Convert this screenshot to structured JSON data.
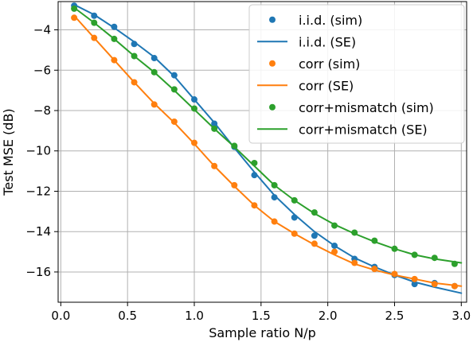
{
  "chart_data": {
    "type": "line",
    "xlabel": "Sample ratio N/p",
    "ylabel": "Test MSE (dB)",
    "xlim": [
      0.0,
      3.0
    ],
    "ylim": [
      -17.5,
      -2.6
    ],
    "grid": true,
    "legend_position": "top-right",
    "xticks": [
      {
        "value": 0.0,
        "label": "0.0"
      },
      {
        "value": 0.5,
        "label": "0.5"
      },
      {
        "value": 1.0,
        "label": "1.0"
      },
      {
        "value": 1.5,
        "label": "1.5"
      },
      {
        "value": 2.0,
        "label": "2.0"
      },
      {
        "value": 2.5,
        "label": "2.5"
      },
      {
        "value": 3.0,
        "label": "3.0"
      }
    ],
    "yticks": [
      {
        "value": -4,
        "label": "−4"
      },
      {
        "value": -6,
        "label": "−6"
      },
      {
        "value": -8,
        "label": "−8"
      },
      {
        "value": -10,
        "label": "−10"
      },
      {
        "value": -12,
        "label": "−12"
      },
      {
        "value": -14,
        "label": "−14"
      },
      {
        "value": -16,
        "label": "−16"
      }
    ],
    "series": [
      {
        "name": "i.i.d. (sim)",
        "kind": "points",
        "color": "#1f77b4",
        "x": [
          0.1,
          0.25,
          0.4,
          0.55,
          0.7,
          0.85,
          1.0,
          1.15,
          1.3,
          1.45,
          1.6,
          1.75,
          1.9,
          2.05,
          2.2,
          2.35,
          2.5,
          2.65,
          2.8,
          2.95
        ],
        "y": [
          -2.8,
          -3.3,
          -3.85,
          -4.7,
          -5.4,
          -6.25,
          -7.45,
          -8.65,
          -9.8,
          -11.2,
          -12.3,
          -13.3,
          -14.2,
          -14.7,
          -15.35,
          -15.75,
          -16.15,
          -16.6,
          -16.55,
          -16.7
        ]
      },
      {
        "name": "i.i.d. (SE)",
        "kind": "line",
        "color": "#1f77b4",
        "x": [
          0.1,
          0.25,
          0.4,
          0.55,
          0.7,
          0.85,
          1.0,
          1.15,
          1.3,
          1.45,
          1.6,
          1.75,
          1.9,
          2.05,
          2.2,
          2.35,
          2.5,
          2.65,
          2.8,
          3.0
        ],
        "y": [
          -2.75,
          -3.25,
          -3.9,
          -4.6,
          -5.35,
          -6.3,
          -7.45,
          -8.6,
          -9.85,
          -11.05,
          -12.2,
          -13.15,
          -14.0,
          -14.7,
          -15.3,
          -15.75,
          -16.15,
          -16.5,
          -16.75,
          -17.05
        ]
      },
      {
        "name": "corr (sim)",
        "kind": "points",
        "color": "#ff7f0e",
        "x": [
          0.1,
          0.25,
          0.4,
          0.55,
          0.7,
          0.85,
          1.0,
          1.15,
          1.3,
          1.45,
          1.6,
          1.75,
          1.9,
          2.05,
          2.2,
          2.35,
          2.5,
          2.65,
          2.8,
          2.95
        ],
        "y": [
          -3.4,
          -4.4,
          -5.5,
          -6.6,
          -7.7,
          -8.55,
          -9.6,
          -10.75,
          -11.7,
          -12.7,
          -13.5,
          -14.1,
          -14.6,
          -15.0,
          -15.55,
          -15.85,
          -16.1,
          -16.35,
          -16.6,
          -16.7
        ]
      },
      {
        "name": "corr (SE)",
        "kind": "line",
        "color": "#ff7f0e",
        "x": [
          0.1,
          0.25,
          0.4,
          0.55,
          0.7,
          0.85,
          1.0,
          1.15,
          1.3,
          1.45,
          1.6,
          1.75,
          1.9,
          2.05,
          2.2,
          2.35,
          2.5,
          2.65,
          2.8,
          3.0
        ],
        "y": [
          -3.3,
          -4.4,
          -5.5,
          -6.6,
          -7.65,
          -8.6,
          -9.65,
          -10.75,
          -11.75,
          -12.7,
          -13.5,
          -14.1,
          -14.65,
          -15.15,
          -15.6,
          -15.9,
          -16.15,
          -16.35,
          -16.55,
          -16.7
        ]
      },
      {
        "name": "corr+mismatch (sim)",
        "kind": "points",
        "color": "#2ca02c",
        "x": [
          0.1,
          0.25,
          0.4,
          0.55,
          0.7,
          0.85,
          1.0,
          1.15,
          1.3,
          1.45,
          1.6,
          1.75,
          1.9,
          2.05,
          2.2,
          2.35,
          2.5,
          2.65,
          2.8,
          2.95
        ],
        "y": [
          -2.95,
          -3.65,
          -4.45,
          -5.3,
          -6.1,
          -6.95,
          -7.9,
          -8.9,
          -9.75,
          -10.6,
          -11.7,
          -12.45,
          -13.05,
          -13.7,
          -14.05,
          -14.45,
          -14.85,
          -15.15,
          -15.3,
          -15.6
        ]
      },
      {
        "name": "corr+mismatch (SE)",
        "kind": "line",
        "color": "#2ca02c",
        "x": [
          0.1,
          0.25,
          0.4,
          0.55,
          0.7,
          0.85,
          1.0,
          1.15,
          1.3,
          1.45,
          1.6,
          1.75,
          1.9,
          2.05,
          2.2,
          2.35,
          2.5,
          2.65,
          2.8,
          3.0
        ],
        "y": [
          -2.9,
          -3.65,
          -4.45,
          -5.3,
          -6.1,
          -7.0,
          -7.95,
          -8.9,
          -9.8,
          -10.75,
          -11.7,
          -12.45,
          -13.1,
          -13.65,
          -14.1,
          -14.5,
          -14.85,
          -15.15,
          -15.35,
          -15.55
        ]
      }
    ]
  }
}
